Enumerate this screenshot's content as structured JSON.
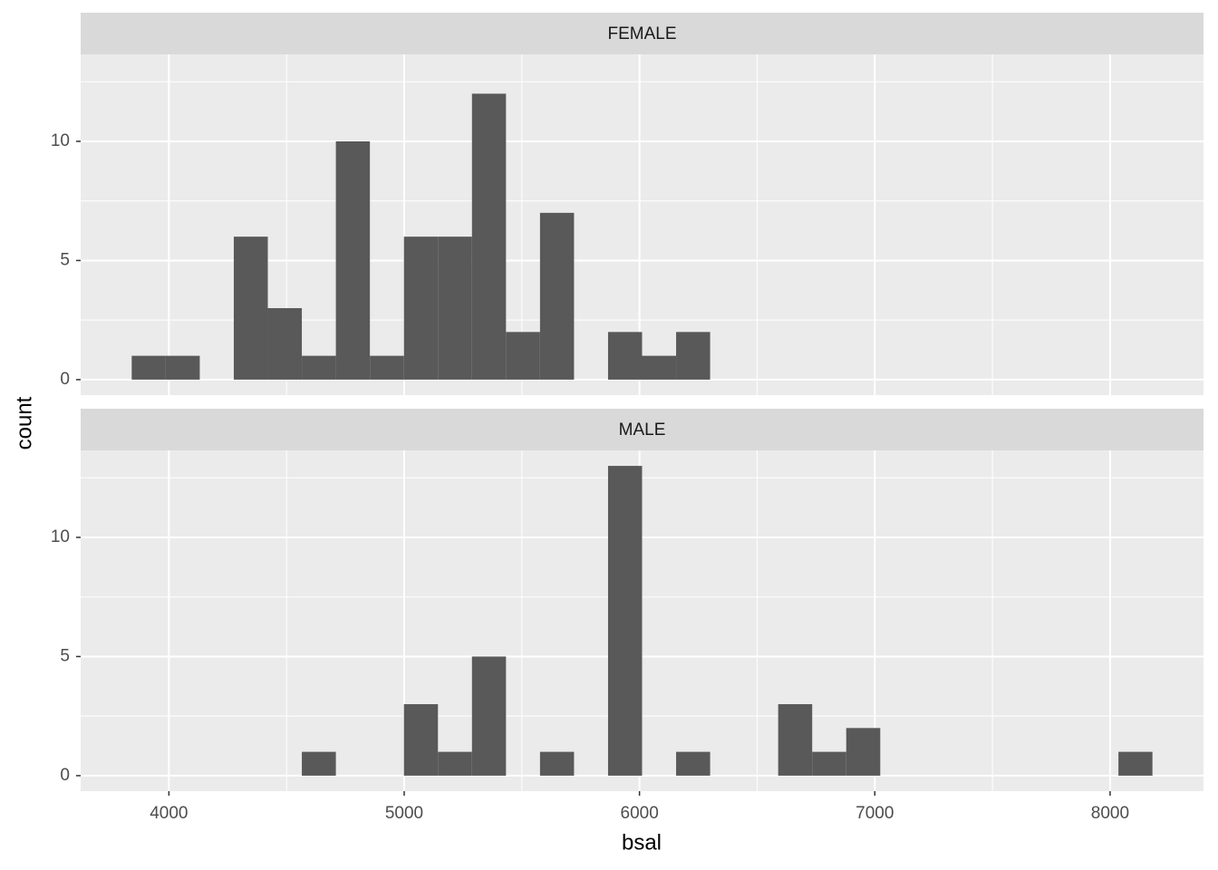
{
  "chart_data": {
    "type": "histogram",
    "xlabel": "bsal",
    "ylabel": "count",
    "color": "#595959",
    "bins": [
      3842,
      3986.6,
      4131.2,
      4275.8,
      4420.4,
      4565,
      4709.6,
      4854.2,
      4998.8,
      5143.4,
      5288,
      5432.6,
      5577.2,
      5721.8,
      5866.4,
      6011,
      6155.6,
      6300.2,
      6444.8,
      6589.4,
      6734,
      6878.6,
      7023.2,
      7167.8,
      7312.4,
      7457,
      7601.6,
      7746.2,
      7890.8,
      8035.4,
      8180
    ],
    "panels": [
      {
        "name": "FEMALE",
        "values": [
          1,
          1,
          0,
          6,
          3,
          1,
          10,
          1,
          6,
          6,
          12,
          2,
          7,
          0,
          2,
          1,
          2,
          0,
          0,
          0,
          0,
          0,
          0,
          0,
          0,
          0,
          0,
          0,
          0,
          0
        ]
      },
      {
        "name": "MALE",
        "values": [
          0,
          0,
          0,
          0,
          0,
          1,
          0,
          0,
          3,
          1,
          5,
          0,
          1,
          0,
          13,
          0,
          1,
          0,
          0,
          3,
          1,
          2,
          0,
          0,
          0,
          0,
          0,
          0,
          0,
          1
        ]
      }
    ],
    "xlim": [
      3625,
      8397
    ],
    "xticks": [
      4000,
      5000,
      6000,
      7000,
      8000
    ],
    "ylim": [
      -0.65,
      13.65
    ],
    "yticks": [
      0,
      5,
      10
    ],
    "grid": true
  }
}
